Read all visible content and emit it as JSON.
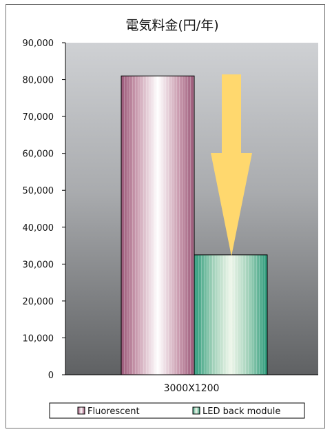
{
  "chart_data": {
    "type": "bar",
    "title": "電気料金(円/年)",
    "categories": [
      "3000X1200"
    ],
    "series": [
      {
        "name": "Fluorescent",
        "values": [
          81000
        ]
      },
      {
        "name": "LED back module",
        "values": [
          32500
        ]
      }
    ],
    "ylim": [
      0,
      90000
    ],
    "yticks": [
      "0",
      "10,000",
      "20,000",
      "30,000",
      "40,000",
      "50,000",
      "60,000",
      "70,000",
      "80,000",
      "90,000"
    ],
    "grid": false,
    "legend_position": "bottom",
    "annotation": "downward arrow from Fluorescent to LED back module",
    "colors": {
      "fluorescent_edge": "#9a5878",
      "fluorescent_center": "#ffffff",
      "led_edge": "#2a9a7a",
      "led_center": "#eef6ea",
      "arrow": "#ffd86e",
      "plot_top": "#c8c8c8",
      "plot_bottom": "#646464"
    }
  }
}
